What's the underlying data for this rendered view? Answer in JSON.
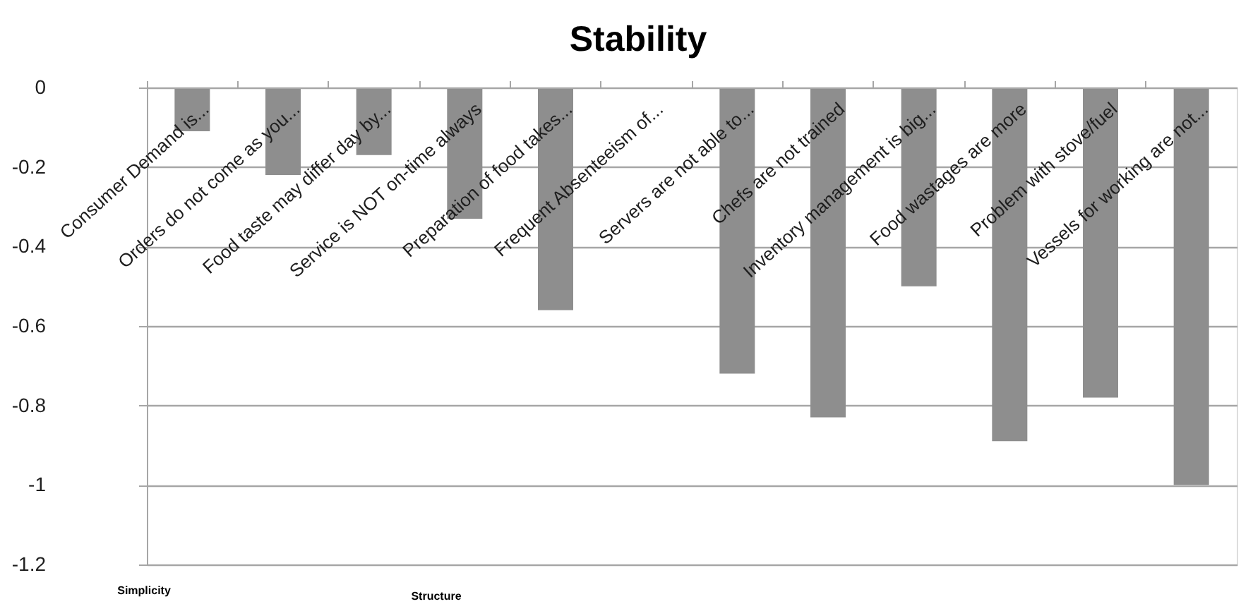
{
  "chart_data": {
    "type": "bar",
    "title": "Stability",
    "categories": [
      "Consumer Demand is...",
      "Orders do not come as you...",
      "Food taste may differ day by...",
      "Service is NOT on-time always",
      "Preparation of food takes...",
      "Frequent Absenteeism of...",
      "Servers are not able to...",
      "Chefs are not trained",
      "Inventory management is big...",
      "Food wastages are more",
      "Problem with stove/fuel",
      "Vessels for working are not..."
    ],
    "values": [
      -0.11,
      -0.22,
      -0.17,
      -0.33,
      -0.56,
      null,
      -0.72,
      -0.83,
      -0.5,
      -0.89,
      -0.78,
      -1
    ],
    "color": "#8e8e8e",
    "ylim": [
      -1.2,
      0
    ],
    "yticks": [
      -1.2,
      -1,
      -0.8,
      -0.6,
      -0.4,
      -0.2,
      0
    ],
    "grid": "y",
    "annotations": [
      "Simplicity",
      "Structure"
    ]
  }
}
